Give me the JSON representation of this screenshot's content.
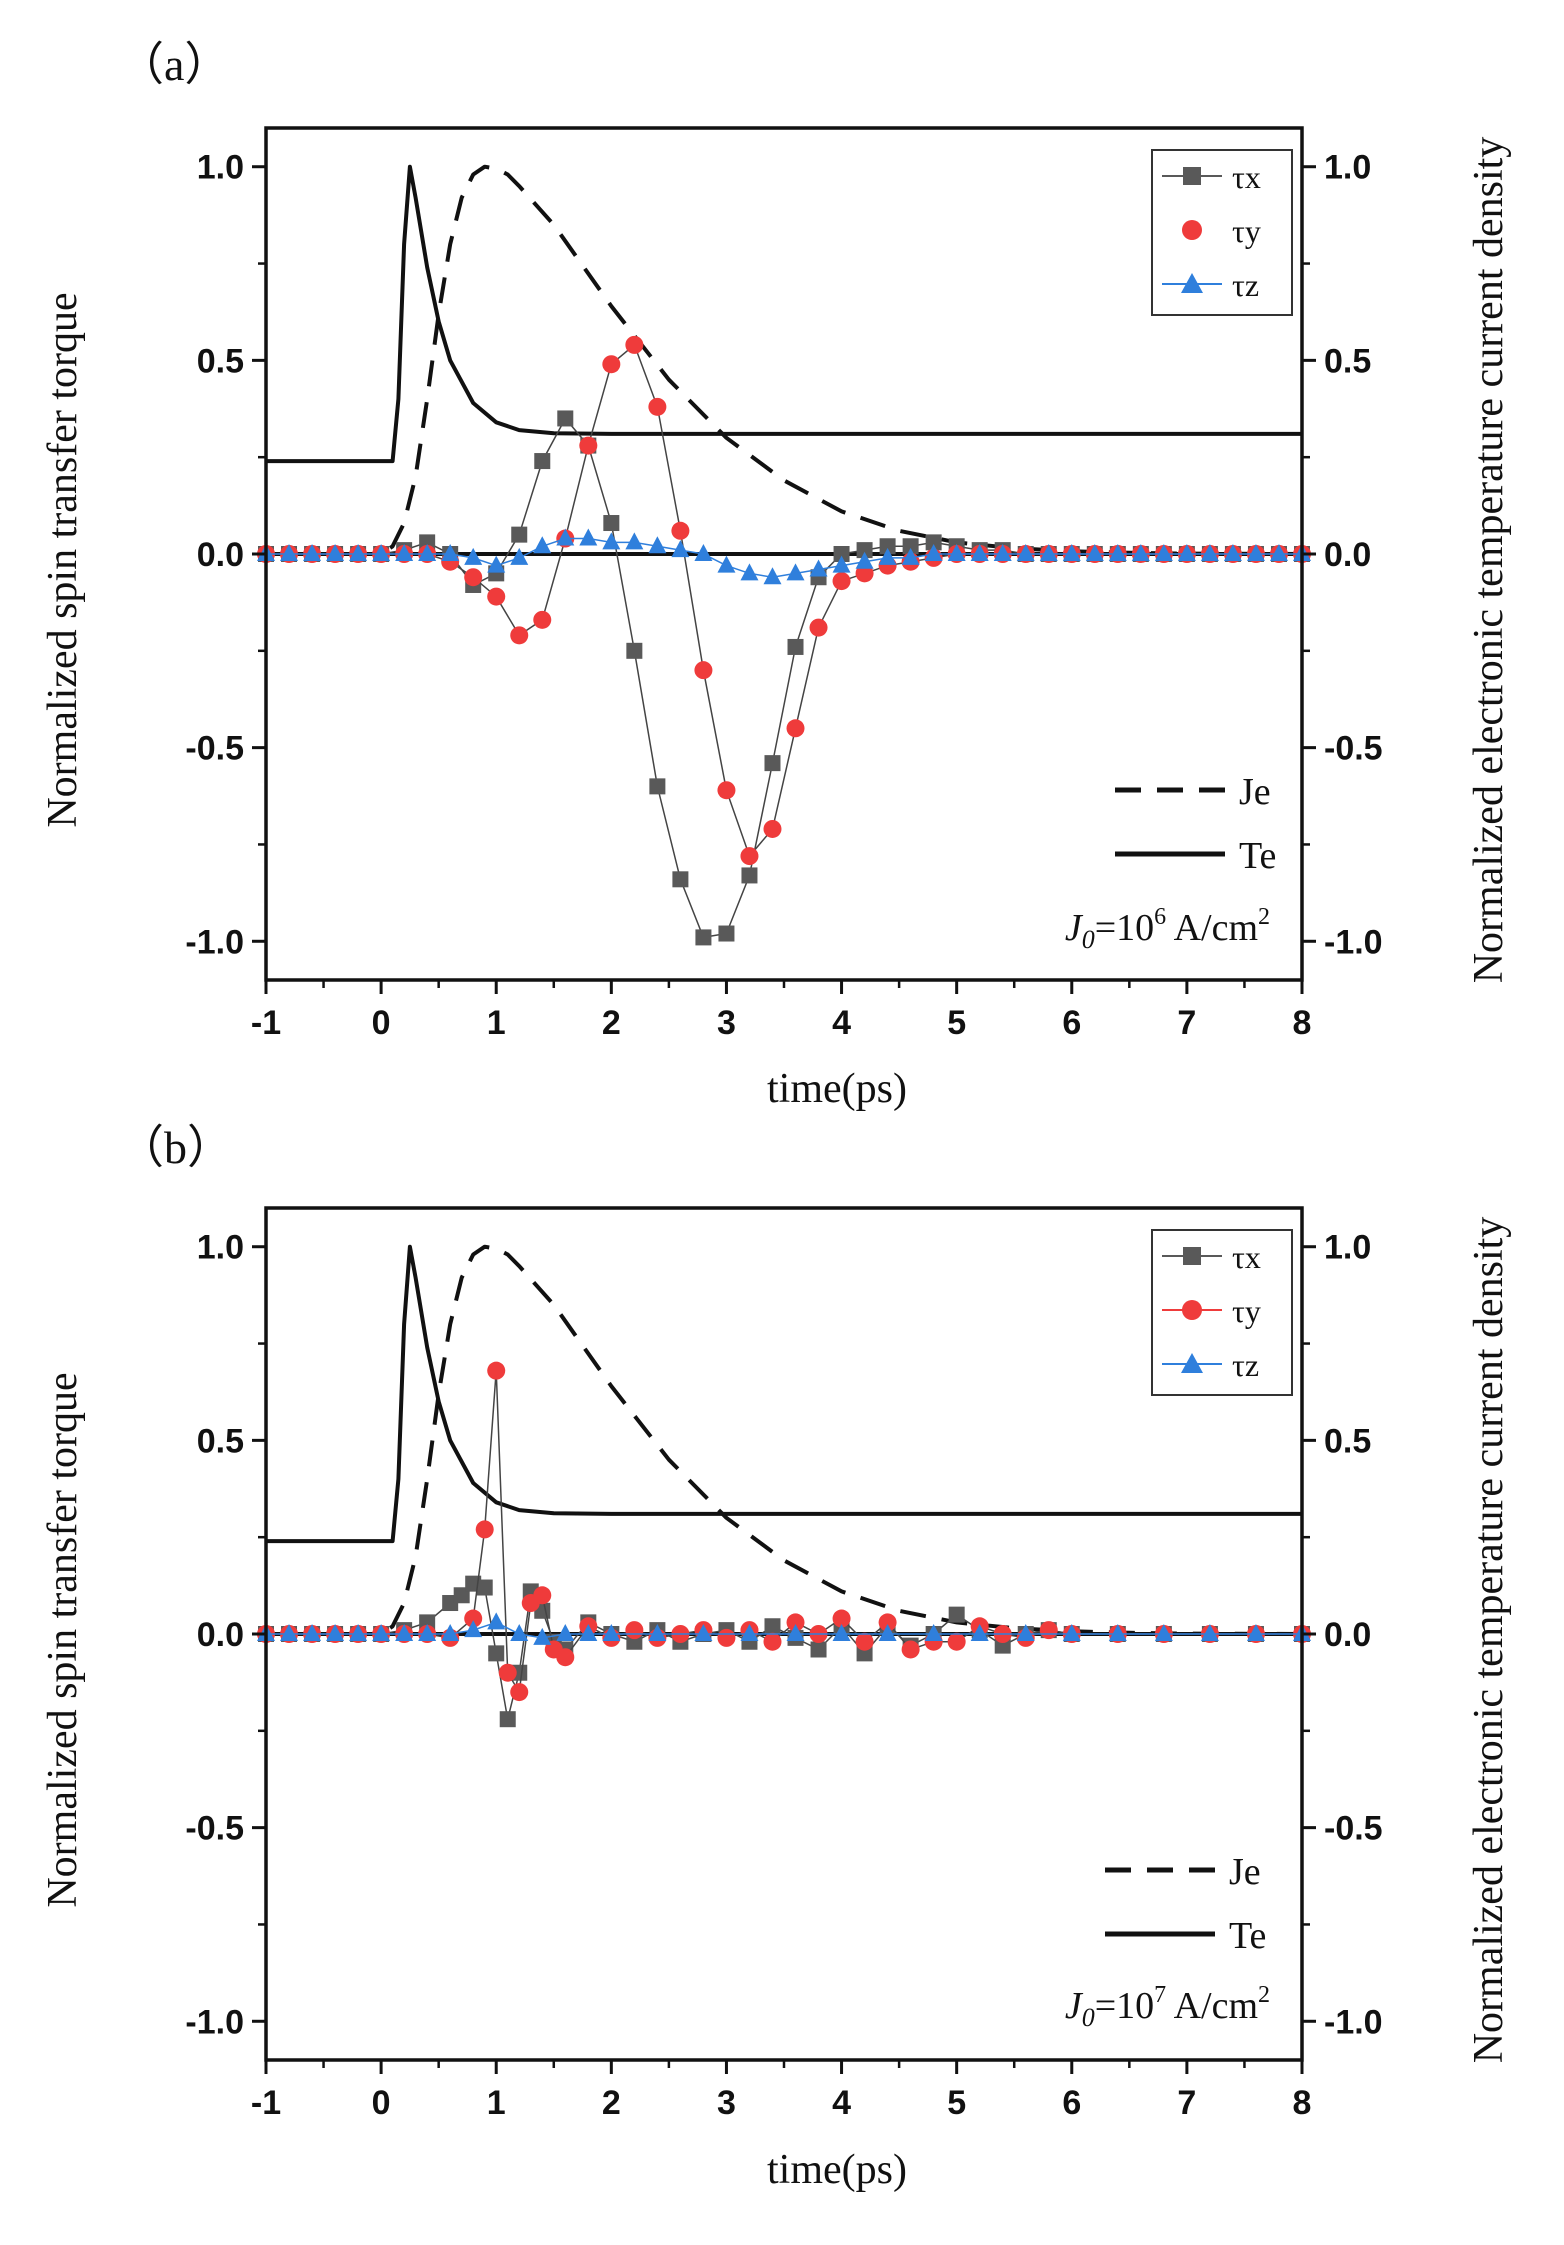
{
  "colors": {
    "tau_x": "#595959",
    "tau_y": "#ef3b3b",
    "tau_z": "#2f7fdc",
    "je": "#111111",
    "te": "#111111"
  },
  "chart_data": [
    {
      "type": "line",
      "panel_label": "（a）",
      "xlabel": "time(ps)",
      "ylabel_left": "Normalized spin transfer torque",
      "ylabel_right": "Normalized electronic temperature current density",
      "xlim": [
        -1,
        8
      ],
      "ylim": [
        -1.1,
        1.1
      ],
      "xticks": [
        "-1",
        "0",
        "1",
        "2",
        "3",
        "4",
        "5",
        "6",
        "7",
        "8"
      ],
      "xtick_values": [
        -1,
        0,
        1,
        2,
        3,
        4,
        5,
        6,
        7,
        8
      ],
      "yticks": [
        "1.0",
        "0.5",
        "0.0",
        "-0.5",
        "-1.0"
      ],
      "ytick_values": [
        1.0,
        0.5,
        0.0,
        -0.5,
        -1.0
      ],
      "legend_markers": [
        "τx",
        "τy",
        "τz"
      ],
      "legend_lines": [
        "Je",
        "Te"
      ],
      "annotation": "J0=10^6 A/cm^2",
      "annotation_parts": {
        "j": "J",
        "sub": "0",
        "eq": "=10",
        "exp": "6",
        "unit": " A/cm",
        "unit_exp": "2"
      },
      "series": [
        {
          "name": "τx",
          "x": [
            -1,
            -0.8,
            -0.6,
            -0.4,
            -0.2,
            0,
            0.2,
            0.4,
            0.6,
            0.8,
            1.0,
            1.2,
            1.4,
            1.6,
            1.8,
            2.0,
            2.2,
            2.4,
            2.6,
            2.8,
            3.0,
            3.2,
            3.4,
            3.6,
            3.8,
            4.0,
            4.2,
            4.4,
            4.6,
            4.8,
            5.0,
            5.2,
            5.4,
            5.6,
            5.8,
            6.0,
            6.2,
            6.4,
            6.6,
            6.8,
            7.0,
            7.2,
            7.4,
            7.6,
            7.8,
            8.0
          ],
          "values": [
            0,
            0,
            0,
            0,
            0,
            0,
            0.01,
            0.03,
            0.0,
            -0.08,
            -0.05,
            0.05,
            0.24,
            0.35,
            0.28,
            0.08,
            -0.25,
            -0.6,
            -0.84,
            -0.99,
            -0.98,
            -0.83,
            -0.54,
            -0.24,
            -0.06,
            0.0,
            0.01,
            0.02,
            0.02,
            0.03,
            0.02,
            0.01,
            0.01,
            0.0,
            0.0,
            0.0,
            0.0,
            0.0,
            0.0,
            0.0,
            0.0,
            0.0,
            0.0,
            0.0,
            0.0,
            0.0
          ]
        },
        {
          "name": "τy",
          "x": [
            -1,
            -0.8,
            -0.6,
            -0.4,
            -0.2,
            0,
            0.2,
            0.4,
            0.6,
            0.8,
            1.0,
            1.2,
            1.4,
            1.6,
            1.8,
            2.0,
            2.2,
            2.4,
            2.6,
            2.8,
            3.0,
            3.2,
            3.4,
            3.6,
            3.8,
            4.0,
            4.2,
            4.4,
            4.6,
            4.8,
            5.0,
            5.2,
            5.4,
            5.6,
            5.8,
            6.0,
            6.2,
            6.4,
            6.6,
            6.8,
            7.0,
            7.2,
            7.4,
            7.6,
            7.8,
            8.0
          ],
          "values": [
            0,
            0,
            0,
            0,
            0,
            0,
            0,
            0,
            -0.02,
            -0.06,
            -0.11,
            -0.21,
            -0.17,
            0.04,
            0.28,
            0.49,
            0.54,
            0.38,
            0.06,
            -0.3,
            -0.61,
            -0.78,
            -0.71,
            -0.45,
            -0.19,
            -0.07,
            -0.05,
            -0.03,
            -0.02,
            -0.01,
            0,
            0,
            0,
            0,
            0,
            0,
            0,
            0,
            0,
            0,
            0,
            0,
            0,
            0,
            0,
            0
          ]
        },
        {
          "name": "τz",
          "x": [
            -1,
            -0.8,
            -0.6,
            -0.4,
            -0.2,
            0,
            0.2,
            0.4,
            0.6,
            0.8,
            1.0,
            1.2,
            1.4,
            1.6,
            1.8,
            2.0,
            2.2,
            2.4,
            2.6,
            2.8,
            3.0,
            3.2,
            3.4,
            3.6,
            3.8,
            4.0,
            4.2,
            4.4,
            4.6,
            4.8,
            5.0,
            5.2,
            5.4,
            5.6,
            5.8,
            6.0,
            6.2,
            6.4,
            6.6,
            6.8,
            7.0,
            7.2,
            7.4,
            7.6,
            7.8,
            8.0
          ],
          "values": [
            0,
            0,
            0,
            0,
            0,
            0,
            0,
            0,
            0,
            -0.01,
            -0.03,
            -0.01,
            0.02,
            0.04,
            0.04,
            0.03,
            0.03,
            0.02,
            0.01,
            0.0,
            -0.03,
            -0.05,
            -0.06,
            -0.05,
            -0.04,
            -0.03,
            -0.02,
            -0.01,
            -0.01,
            0,
            0,
            0,
            0,
            0,
            0,
            0,
            0,
            0,
            0,
            0,
            0,
            0,
            0,
            0,
            0,
            0
          ]
        },
        {
          "name": "Je",
          "style": "dashed",
          "x": [
            -1,
            0,
            0.1,
            0.2,
            0.3,
            0.4,
            0.5,
            0.6,
            0.7,
            0.8,
            0.9,
            1.0,
            1.1,
            1.2,
            1.5,
            2.0,
            2.5,
            3.0,
            3.5,
            4.0,
            4.5,
            5.0,
            5.5,
            6.0,
            6.5,
            7.0,
            8.0
          ],
          "values": [
            0,
            0,
            0.02,
            0.08,
            0.2,
            0.4,
            0.62,
            0.8,
            0.92,
            0.98,
            1.0,
            0.995,
            0.98,
            0.95,
            0.85,
            0.64,
            0.45,
            0.3,
            0.19,
            0.11,
            0.06,
            0.03,
            0.015,
            0.007,
            0.003,
            0.001,
            0
          ]
        },
        {
          "name": "Te",
          "style": "solid",
          "x": [
            -1,
            0.1,
            0.15,
            0.2,
            0.25,
            0.3,
            0.4,
            0.5,
            0.6,
            0.8,
            1.0,
            1.2,
            1.5,
            2.0,
            3.0,
            4.0,
            5.0,
            6.0,
            7.0,
            8.0
          ],
          "values": [
            0.24,
            0.24,
            0.4,
            0.8,
            1.0,
            0.92,
            0.74,
            0.6,
            0.5,
            0.39,
            0.34,
            0.32,
            0.312,
            0.31,
            0.31,
            0.31,
            0.31,
            0.31,
            0.31,
            0.31
          ]
        }
      ]
    },
    {
      "type": "line",
      "panel_label": "（b）",
      "xlabel": "time(ps)",
      "ylabel_left": "Normalized spin transfer torque",
      "ylabel_right": "Normalized electronic temperature current density",
      "xlim": [
        -1,
        8
      ],
      "ylim": [
        -1.1,
        1.1
      ],
      "xticks": [
        "-1",
        "0",
        "1",
        "2",
        "3",
        "4",
        "5",
        "6",
        "7",
        "8"
      ],
      "xtick_values": [
        -1,
        0,
        1,
        2,
        3,
        4,
        5,
        6,
        7,
        8
      ],
      "yticks": [
        "1.0",
        "0.5",
        "0.0",
        "-0.5",
        "-1.0"
      ],
      "ytick_values": [
        1.0,
        0.5,
        0.0,
        -0.5,
        -1.0
      ],
      "legend_markers": [
        "τx",
        "τy",
        "τz"
      ],
      "legend_lines": [
        "Je",
        "Te"
      ],
      "annotation": "J0=10^7 A/cm^2",
      "annotation_parts": {
        "j": "J",
        "sub": "0",
        "eq": "=10",
        "exp": "7",
        "unit": " A/cm",
        "unit_exp": "2"
      },
      "series": [
        {
          "name": "τx",
          "x": [
            -1,
            -0.8,
            -0.6,
            -0.4,
            -0.2,
            0,
            0.2,
            0.4,
            0.6,
            0.7,
            0.8,
            0.9,
            1.0,
            1.1,
            1.2,
            1.3,
            1.4,
            1.5,
            1.6,
            1.8,
            2.0,
            2.2,
            2.4,
            2.6,
            2.8,
            3.0,
            3.2,
            3.4,
            3.6,
            3.8,
            4.0,
            4.2,
            4.4,
            4.6,
            4.8,
            5.0,
            5.2,
            5.4,
            5.6,
            5.8,
            6.0,
            6.4,
            6.8,
            7.2,
            7.6,
            8.0
          ],
          "values": [
            0,
            0,
            0,
            0,
            0,
            0,
            0.01,
            0.03,
            0.08,
            0.1,
            0.13,
            0.12,
            -0.05,
            -0.22,
            -0.1,
            0.11,
            0.06,
            -0.02,
            -0.04,
            0.03,
            0.0,
            -0.02,
            0.01,
            -0.02,
            0.0,
            0.01,
            -0.02,
            0.02,
            -0.01,
            -0.04,
            0.02,
            -0.05,
            0.02,
            -0.03,
            0.0,
            0.05,
            0.01,
            -0.03,
            0.0,
            0.01,
            0.0,
            0.0,
            0.0,
            0.0,
            0.0,
            0.0
          ]
        },
        {
          "name": "τy",
          "x": [
            -1,
            -0.8,
            -0.6,
            -0.4,
            -0.2,
            0,
            0.2,
            0.4,
            0.6,
            0.8,
            0.9,
            1.0,
            1.1,
            1.2,
            1.3,
            1.4,
            1.5,
            1.6,
            1.8,
            2.0,
            2.2,
            2.4,
            2.6,
            2.8,
            3.0,
            3.2,
            3.4,
            3.6,
            3.8,
            4.0,
            4.2,
            4.4,
            4.6,
            4.8,
            5.0,
            5.2,
            5.4,
            5.6,
            5.8,
            6.0,
            6.4,
            6.8,
            7.2,
            7.6,
            8.0
          ],
          "values": [
            0,
            0,
            0,
            0,
            0,
            0,
            0,
            0,
            -0.01,
            0.04,
            0.27,
            0.68,
            -0.1,
            -0.15,
            0.08,
            0.1,
            -0.04,
            -0.06,
            0.02,
            -0.01,
            0.01,
            -0.01,
            0.0,
            0.01,
            -0.01,
            0.01,
            -0.02,
            0.03,
            0.0,
            0.04,
            -0.02,
            0.03,
            -0.04,
            -0.02,
            -0.02,
            0.02,
            0.0,
            -0.01,
            0.01,
            0.0,
            0.0,
            0.0,
            0.0,
            0.0,
            0.0
          ]
        },
        {
          "name": "τz",
          "x": [
            -1,
            -0.8,
            -0.6,
            -0.4,
            -0.2,
            0,
            0.2,
            0.4,
            0.6,
            0.8,
            1.0,
            1.2,
            1.4,
            1.6,
            1.8,
            2.0,
            2.4,
            2.8,
            3.2,
            3.6,
            4.0,
            4.4,
            4.8,
            5.2,
            5.6,
            6.0,
            6.4,
            6.8,
            7.2,
            7.6,
            8.0
          ],
          "values": [
            0,
            0,
            0,
            0,
            0,
            0,
            0,
            0,
            0,
            0.01,
            0.03,
            0.0,
            -0.01,
            0.0,
            0.0,
            0,
            0,
            0,
            0,
            0,
            0,
            0,
            0,
            0,
            0,
            0,
            0,
            0,
            0,
            0,
            0
          ]
        },
        {
          "name": "Je",
          "style": "dashed",
          "x": [
            -1,
            0,
            0.1,
            0.2,
            0.3,
            0.4,
            0.5,
            0.6,
            0.7,
            0.8,
            0.9,
            1.0,
            1.1,
            1.2,
            1.5,
            2.0,
            2.5,
            3.0,
            3.5,
            4.0,
            4.5,
            5.0,
            5.5,
            6.0,
            6.5,
            7.0,
            8.0
          ],
          "values": [
            0,
            0,
            0.02,
            0.08,
            0.2,
            0.4,
            0.62,
            0.8,
            0.92,
            0.98,
            1.0,
            0.995,
            0.98,
            0.95,
            0.85,
            0.64,
            0.45,
            0.3,
            0.19,
            0.11,
            0.06,
            0.03,
            0.015,
            0.007,
            0.003,
            0.001,
            0
          ]
        },
        {
          "name": "Te",
          "style": "solid",
          "x": [
            -1,
            0.1,
            0.15,
            0.2,
            0.25,
            0.3,
            0.4,
            0.5,
            0.6,
            0.8,
            1.0,
            1.2,
            1.5,
            2.0,
            3.0,
            4.0,
            5.0,
            6.0,
            7.0,
            8.0
          ],
          "values": [
            0.24,
            0.24,
            0.4,
            0.8,
            1.0,
            0.92,
            0.74,
            0.6,
            0.5,
            0.39,
            0.34,
            0.32,
            0.312,
            0.31,
            0.31,
            0.31,
            0.31,
            0.31,
            0.31,
            0.31
          ]
        }
      ]
    }
  ]
}
